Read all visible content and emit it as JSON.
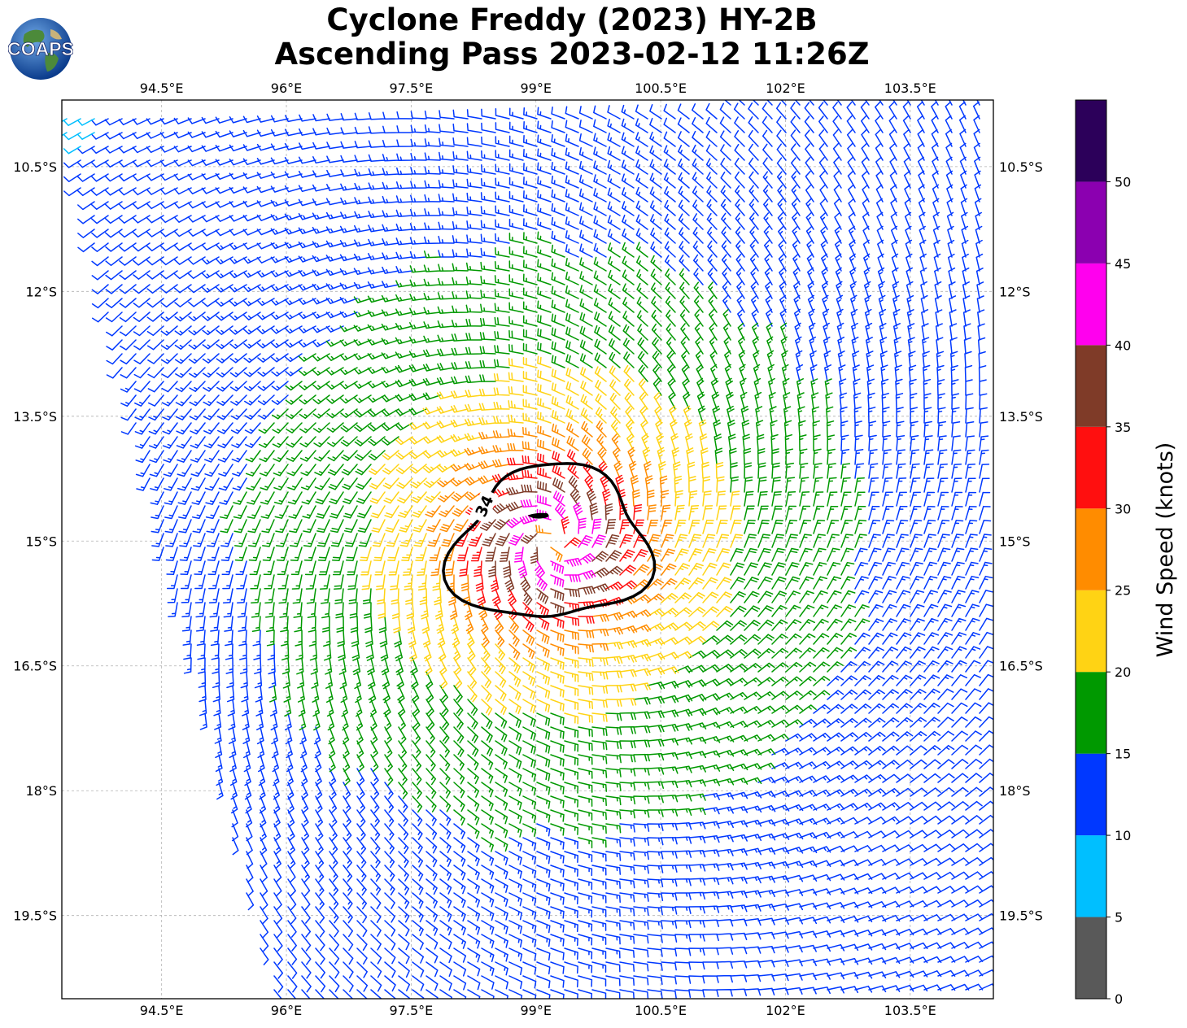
{
  "title": {
    "line1": "Cyclone Freddy (2023) HY-2B",
    "line2": "Ascending Pass 2023-02-12 11:26Z"
  },
  "logo": {
    "text": "COAPS",
    "icon": "globe-logo-icon"
  },
  "chart_data": {
    "type": "wind-barb-map",
    "x_axis": {
      "unit": "degrees east",
      "range": [
        93.3,
        104.5
      ],
      "ticks": [
        94.5,
        96,
        97.5,
        99,
        100.5,
        102,
        103.5
      ],
      "tick_labels": [
        "94.5°E",
        "96°E",
        "97.5°E",
        "99°E",
        "100.5°E",
        "102°E",
        "103.5°E"
      ]
    },
    "y_axis": {
      "unit": "degrees latitude",
      "range": [
        -9.7,
        -20.5
      ],
      "ticks": [
        -10.5,
        -12,
        -13.5,
        -15,
        -16.5,
        -18,
        -19.5
      ],
      "tick_labels": [
        "10.5°S",
        "12°S",
        "13.5°S",
        "15°S",
        "16.5°S",
        "18°S",
        "19.5°S"
      ]
    },
    "grid": true,
    "storm_center": {
      "lon": 99.2,
      "lat": -15.0
    },
    "contour": {
      "label": "34",
      "value_knots": 34
    },
    "colorbar": {
      "label": "Wind Speed (knots)",
      "range": [
        0,
        55
      ],
      "ticks": [
        0,
        5,
        10,
        15,
        20,
        25,
        30,
        35,
        40,
        45,
        50
      ],
      "tick_labels": [
        "0",
        "5",
        "10",
        "15",
        "20",
        "25",
        "30",
        "35",
        "40",
        "45",
        "50"
      ],
      "colors": [
        "#595959",
        "#00bfff",
        "#0038ff",
        "#009900",
        "#ffd314",
        "#ff8c00",
        "#ff0f0f",
        "#7f3b28",
        "#ff00ee",
        "#8b00b0",
        "#2c005a"
      ]
    },
    "swath": {
      "corners": [
        {
          "lon": 93.3,
          "lat": -9.9
        },
        {
          "lon": 104.5,
          "lat": -9.7
        },
        {
          "lon": 104.5,
          "lat": -20.5
        },
        {
          "lon": 95.8,
          "lat": -20.5
        }
      ]
    }
  }
}
